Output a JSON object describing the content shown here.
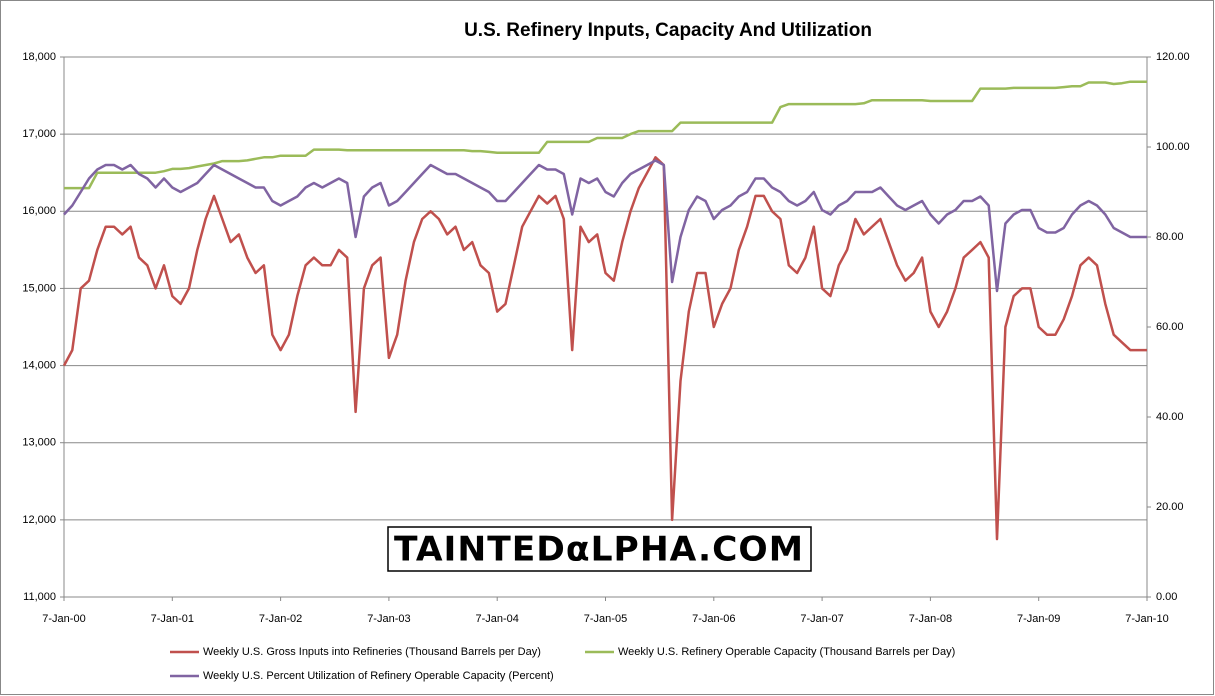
{
  "chart_data": {
    "type": "line",
    "title": "U.S. Refinery Inputs, Capacity And Utilization",
    "watermark": "TAINTEDαLPHA.COM",
    "categories": [
      "7-Jan-00",
      null,
      null,
      null,
      null,
      null,
      null,
      null,
      null,
      null,
      null,
      null,
      null,
      "7-Jan-01",
      null,
      null,
      null,
      null,
      null,
      null,
      null,
      null,
      null,
      null,
      null,
      null,
      "7-Jan-02",
      null,
      null,
      null,
      null,
      null,
      null,
      null,
      null,
      null,
      null,
      null,
      null,
      "7-Jan-03",
      null,
      null,
      null,
      null,
      null,
      null,
      null,
      null,
      null,
      null,
      null,
      null,
      "7-Jan-04",
      null,
      null,
      null,
      null,
      null,
      null,
      null,
      null,
      null,
      null,
      null,
      null,
      "7-Jan-05",
      null,
      null,
      null,
      null,
      null,
      null,
      null,
      null,
      null,
      null,
      null,
      null,
      "7-Jan-06",
      null,
      null,
      null,
      null,
      null,
      null,
      null,
      null,
      null,
      null,
      null,
      null,
      "7-Jan-07",
      null,
      null,
      null,
      null,
      null,
      null,
      null,
      null,
      null,
      null,
      null,
      null,
      "7-Jan-08",
      null,
      null,
      null,
      null,
      null,
      null,
      null,
      null,
      null,
      null,
      null,
      null,
      "7-Jan-09",
      null,
      null,
      null,
      null,
      null,
      null,
      null,
      null,
      null,
      null,
      null,
      null,
      "7-Jan-10"
    ],
    "series": [
      {
        "name": "Weekly U.S. Gross Inputs into Refineries  (Thousand Barrels per Day)",
        "color": "#c0504d",
        "values": [
          14000,
          14200,
          15000,
          15100,
          15500,
          15800,
          15800,
          15700,
          15800,
          15400,
          15300,
          15000,
          15300,
          14900,
          14800,
          15000,
          15500,
          15900,
          16200,
          15900,
          15600,
          15700,
          15400,
          15200,
          15300,
          14400,
          14200,
          14400,
          14900,
          15300,
          15400,
          15300,
          15300,
          15500,
          15400,
          13400,
          15000,
          15300,
          15400,
          14100,
          14400,
          15100,
          15600,
          15900,
          16000,
          15900,
          15700,
          15800,
          15500,
          15600,
          15300,
          15200,
          14700,
          14800,
          15300,
          15800,
          16000,
          16200,
          16100,
          16200,
          15900,
          14200,
          15800,
          15600,
          15700,
          15200,
          15100,
          15600,
          16000,
          16300,
          16500,
          16700,
          16600,
          12000,
          13800,
          14700,
          15200,
          15200,
          14500,
          14800,
          15000,
          15500,
          15800,
          16200,
          16200,
          16000,
          15900,
          15300,
          15200,
          15400,
          15800,
          15000,
          14900,
          15300,
          15500,
          15900,
          15700,
          15800,
          15900,
          15600,
          15300,
          15100,
          15200,
          15400,
          14700,
          14500,
          14700,
          15000,
          15400,
          15500,
          15600,
          15400,
          11750,
          14500,
          14900,
          15000,
          15000,
          14500,
          14400,
          14400,
          14600,
          14900,
          15300,
          15400,
          15300,
          14800,
          14400,
          14300,
          14200,
          14200,
          14200
        ]
      },
      {
        "name": "Weekly U.S. Refinery Operable Capacity  (Thousand  Barrels per Day)",
        "color": "#9bbb59",
        "values": [
          16300,
          16300,
          16300,
          16300,
          16500,
          16500,
          16500,
          16500,
          16500,
          16500,
          16500,
          16500,
          16520,
          16550,
          16550,
          16560,
          16580,
          16600,
          16620,
          16650,
          16650,
          16650,
          16660,
          16680,
          16700,
          16700,
          16720,
          16720,
          16720,
          16720,
          16800,
          16800,
          16800,
          16800,
          16790,
          16790,
          16790,
          16790,
          16790,
          16790,
          16790,
          16790,
          16790,
          16790,
          16790,
          16790,
          16790,
          16790,
          16790,
          16780,
          16780,
          16770,
          16760,
          16760,
          16760,
          16760,
          16760,
          16760,
          16900,
          16900,
          16900,
          16900,
          16900,
          16900,
          16950,
          16950,
          16950,
          16950,
          17000,
          17040,
          17040,
          17040,
          17040,
          17040,
          17150,
          17150,
          17150,
          17150,
          17150,
          17150,
          17150,
          17150,
          17150,
          17150,
          17150,
          17150,
          17350,
          17390,
          17390,
          17390,
          17390,
          17390,
          17390,
          17390,
          17390,
          17390,
          17400,
          17440,
          17440,
          17440,
          17440,
          17440,
          17440,
          17440,
          17430,
          17430,
          17430,
          17430,
          17430,
          17430,
          17590,
          17590,
          17590,
          17590,
          17600,
          17600,
          17600,
          17600,
          17600,
          17600,
          17610,
          17620,
          17620,
          17670,
          17670,
          17670,
          17650,
          17660,
          17680,
          17680,
          17680
        ]
      },
      {
        "name": "Weekly U.S. Percent Utilization  of Refinery Operable Capacity  (Percent)",
        "color": "#8064a2",
        "axis": "y2",
        "values": [
          85,
          87,
          90,
          93,
          95,
          96,
          96,
          95,
          96,
          94,
          93,
          91,
          93,
          91,
          90,
          91,
          92,
          94,
          96,
          95,
          94,
          93,
          92,
          91,
          91,
          88,
          87,
          88,
          89,
          91,
          92,
          91,
          92,
          93,
          92,
          80,
          89,
          91,
          92,
          87,
          88,
          90,
          92,
          94,
          96,
          95,
          94,
          94,
          93,
          92,
          91,
          90,
          88,
          88,
          90,
          92,
          94,
          96,
          95,
          95,
          94,
          85,
          93,
          92,
          93,
          90,
          89,
          92,
          94,
          95,
          96,
          97,
          96,
          70,
          80,
          86,
          89,
          88,
          84,
          86,
          87,
          89,
          90,
          93,
          93,
          91,
          90,
          88,
          87,
          88,
          90,
          86,
          85,
          87,
          88,
          90,
          90,
          90,
          91,
          89,
          87,
          86,
          87,
          88,
          85,
          83,
          85,
          86,
          88,
          88,
          89,
          87,
          68,
          83,
          85,
          86,
          86,
          82,
          81,
          81,
          82,
          85,
          87,
          88,
          87,
          85,
          82,
          81,
          80,
          80,
          80
        ]
      }
    ],
    "ylim": [
      11000,
      18000
    ],
    "yticks": [
      {
        "value": 11000,
        "label": "11,000"
      },
      {
        "value": 12000,
        "label": "12,000"
      },
      {
        "value": 13000,
        "label": "13,000"
      },
      {
        "value": 14000,
        "label": "14,000"
      },
      {
        "value": 15000,
        "label": "15,000"
      },
      {
        "value": 16000,
        "label": "16,000"
      },
      {
        "value": 17000,
        "label": "17,000"
      },
      {
        "value": 18000,
        "label": "18,000"
      }
    ],
    "y2lim": [
      0,
      120
    ],
    "y2ticks": [
      {
        "value": 0,
        "label": "0.00"
      },
      {
        "value": 20,
        "label": "20.00"
      },
      {
        "value": 40,
        "label": "40.00"
      },
      {
        "value": 60,
        "label": "60.00"
      },
      {
        "value": 80,
        "label": "80.00"
      },
      {
        "value": 100,
        "label": "100.00"
      },
      {
        "value": 120,
        "label": "120.00"
      }
    ],
    "grid": true
  }
}
